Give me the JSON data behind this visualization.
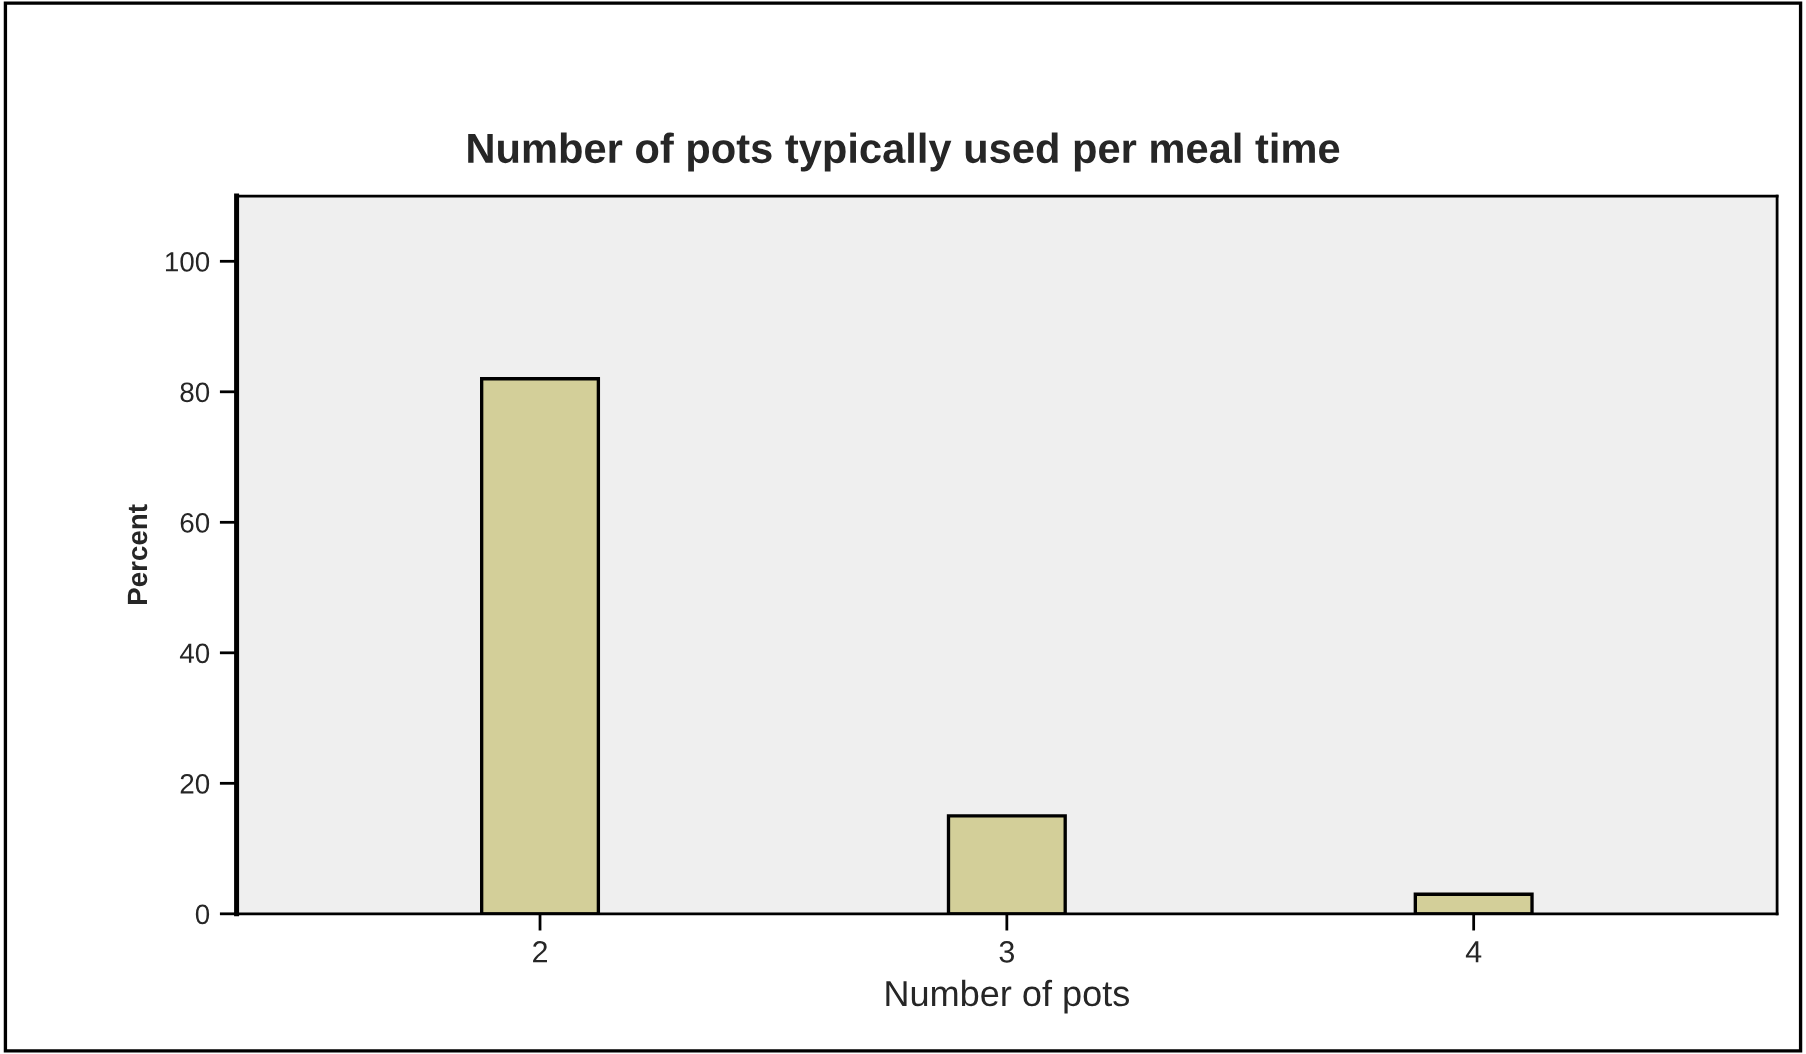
{
  "chart_data": {
    "type": "bar",
    "title": "Number of pots typically used per meal time",
    "xlabel": "Number of pots",
    "ylabel": "Percent",
    "categories": [
      "2",
      "3",
      "4"
    ],
    "values": [
      82,
      15,
      3
    ],
    "color": "#d3cf99",
    "ylim": [
      0,
      110
    ],
    "yticks": [
      0,
      20,
      40,
      60,
      80,
      100
    ],
    "grid": false,
    "legend": false
  }
}
